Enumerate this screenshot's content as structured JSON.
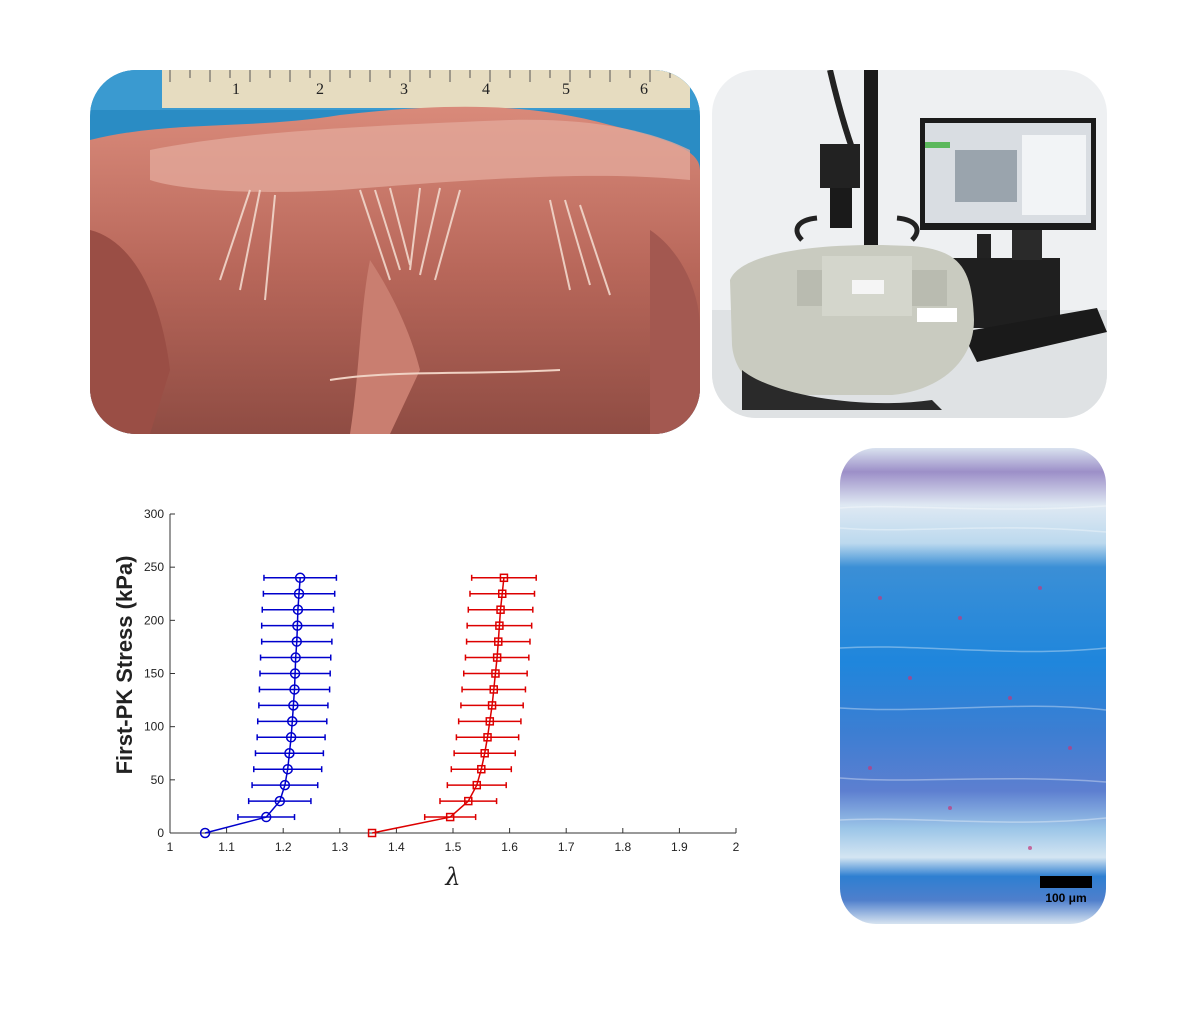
{
  "ruler": {
    "numbers": [
      "1",
      "2",
      "3",
      "4",
      "5",
      "6"
    ]
  },
  "histology": {
    "scale_label": "100 μm"
  },
  "colors": {
    "series_blue": "#0000cc",
    "series_red": "#dd0000",
    "histology_blue": "#1e88d8",
    "tissue_pink": "#c86a5c"
  },
  "chart_data": {
    "type": "line",
    "title": "",
    "xlabel": "λ",
    "ylabel": "First-PK Stress (kPa)",
    "xlim": [
      1,
      2
    ],
    "ylim": [
      0,
      300
    ],
    "xticks": [
      "1",
      "1.1",
      "1.2",
      "1.3",
      "1.4",
      "1.5",
      "1.6",
      "1.7",
      "1.8",
      "1.9",
      "2"
    ],
    "yticks": [
      "0",
      "50",
      "100",
      "150",
      "200",
      "250",
      "300"
    ],
    "grid": false,
    "series": [
      {
        "color": "#0000cc",
        "marker": "circle",
        "y": [
          0,
          15,
          30,
          45,
          60,
          75,
          90,
          105,
          120,
          135,
          150,
          165,
          180,
          195,
          210,
          225,
          240
        ],
        "x": [
          1.062,
          1.17,
          1.194,
          1.203,
          1.208,
          1.211,
          1.214,
          1.216,
          1.218,
          1.22,
          1.221,
          1.222,
          1.224,
          1.225,
          1.226,
          1.228,
          1.23
        ],
        "err": [
          0,
          0.05,
          0.055,
          0.058,
          0.06,
          0.06,
          0.06,
          0.061,
          0.061,
          0.062,
          0.062,
          0.062,
          0.062,
          0.063,
          0.063,
          0.063,
          0.064
        ]
      },
      {
        "color": "#dd0000",
        "marker": "square",
        "y": [
          0,
          15,
          30,
          45,
          60,
          75,
          90,
          105,
          120,
          135,
          150,
          165,
          180,
          195,
          210,
          225,
          240
        ],
        "x": [
          1.357,
          1.495,
          1.527,
          1.542,
          1.55,
          1.556,
          1.561,
          1.565,
          1.569,
          1.572,
          1.575,
          1.578,
          1.58,
          1.582,
          1.584,
          1.587,
          1.59
        ],
        "err": [
          0,
          0.045,
          0.05,
          0.052,
          0.053,
          0.054,
          0.055,
          0.055,
          0.055,
          0.056,
          0.056,
          0.056,
          0.056,
          0.057,
          0.057,
          0.057,
          0.057
        ]
      }
    ]
  }
}
